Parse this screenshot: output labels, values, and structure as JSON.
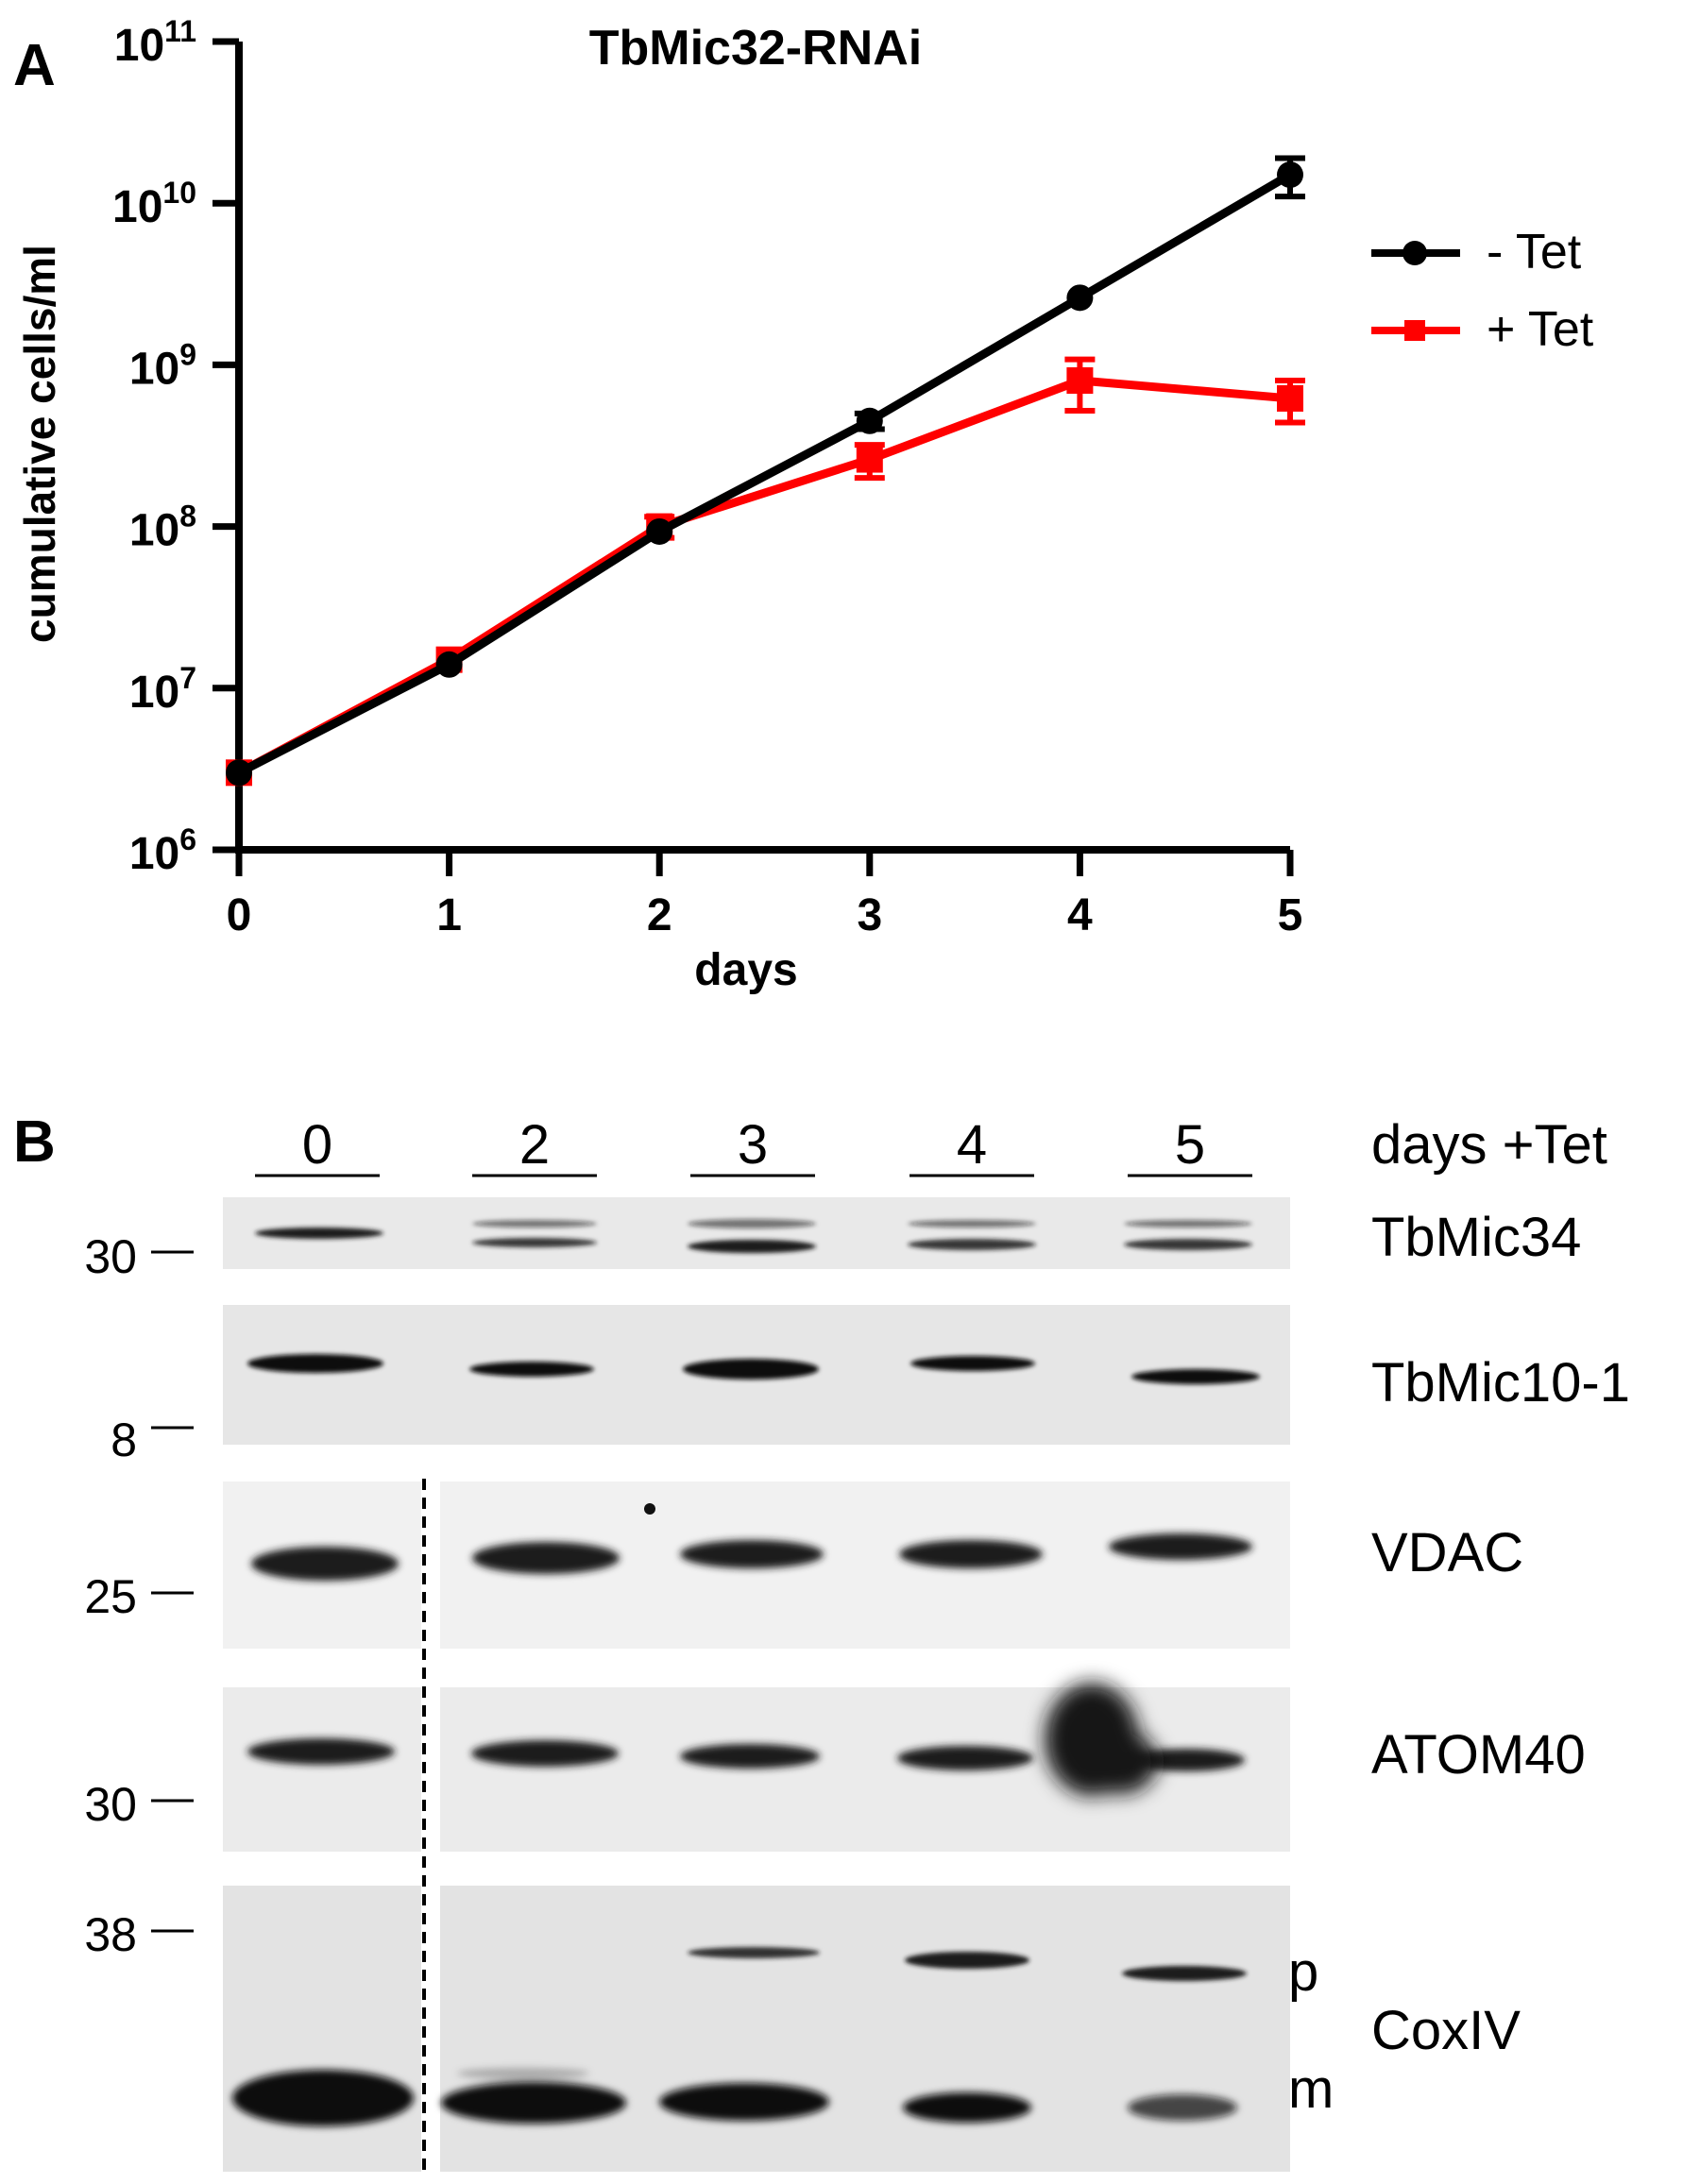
{
  "panel_a": {
    "letter": "A",
    "chart_data": {
      "type": "line",
      "title": "TbMic32-RNAi",
      "xlabel": "days",
      "ylabel": "cumulative cells/ml",
      "yscale": "log",
      "x": [
        0,
        1,
        2,
        3,
        4,
        5
      ],
      "xlim": [
        0,
        5
      ],
      "ylim": [
        1000000,
        100000000000
      ],
      "y_tick_values": [
        1000000,
        10000000,
        100000000,
        1000000000,
        10000000000,
        100000000000
      ],
      "y_ticks": [
        {
          "base": "10",
          "exp": "6"
        },
        {
          "base": "10",
          "exp": "7"
        },
        {
          "base": "10",
          "exp": "8"
        },
        {
          "base": "10",
          "exp": "9"
        },
        {
          "base": "10",
          "exp": "10"
        },
        {
          "base": "10",
          "exp": "11"
        }
      ],
      "x_tick_labels": [
        "0",
        "1",
        "2",
        "3",
        "4",
        "5"
      ],
      "legend_position": "right",
      "grid": false,
      "series": [
        {
          "name": "- Tet",
          "marker": "circle",
          "color": "#000000",
          "values": [
            3000000,
            14000000,
            93000000,
            450000000,
            2600000000,
            15000000000
          ],
          "error": [
            0,
            0,
            0,
            50000000,
            0,
            4000000000
          ]
        },
        {
          "name": "+ Tet",
          "marker": "square",
          "color": "#ff0000",
          "values": [
            3000000,
            15000000,
            100000000,
            260000000,
            800000000,
            620000000
          ],
          "error": [
            0,
            0,
            15000000,
            60000000,
            280000000,
            180000000
          ]
        }
      ]
    }
  },
  "panel_b": {
    "letter": "B",
    "header_label": "days +Tet",
    "lanes": [
      "0",
      "2",
      "3",
      "4",
      "5"
    ],
    "blots": [
      {
        "name": "TbMic34",
        "marker": "30"
      },
      {
        "name": "TbMic10-1",
        "marker": "8"
      },
      {
        "name": "VDAC",
        "marker": "25"
      },
      {
        "name": "ATOM40",
        "marker": "30"
      },
      {
        "name": "CoxIV",
        "marker": "38",
        "precursor_label": "p",
        "mature_label": "m"
      }
    ]
  }
}
